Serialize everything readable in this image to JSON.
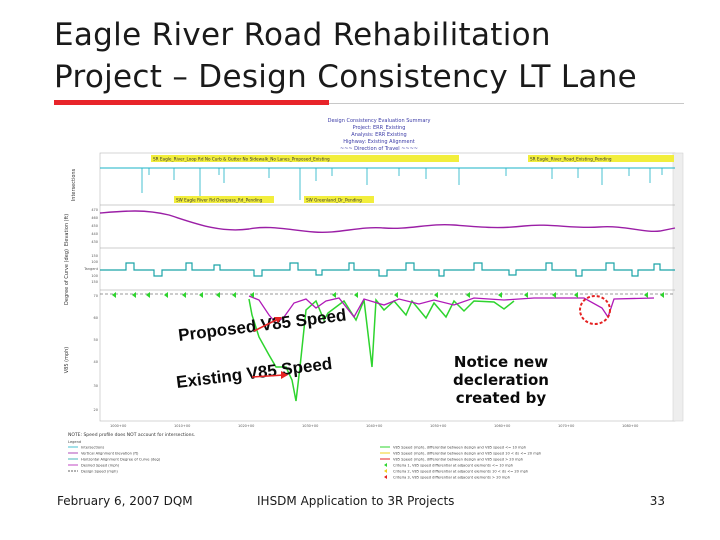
{
  "slide": {
    "title_line1": "Eagle River Road Rehabilitation",
    "title_line2": "Project – Design Consistency LT Lane",
    "accent_color": "#e8242a"
  },
  "report": {
    "header_lines": [
      "Design Consistency Evaluation Summary",
      "Project: ERR_Existing",
      "Analysis: ERR Existing",
      "Highway: Existing Alignment",
      "~~~ Direction of Travel ~~~~"
    ],
    "bands": {
      "intersections": "Intersections",
      "elevation": "Elevation (ft)",
      "curvature": "Degree of Curve (deg)",
      "speed": "V85 (mph)"
    },
    "tangent_label": "Tangent",
    "intersection_labels_top": [
      "SR Eagle_River_Loop Rd No Curb & Gutter No Sidewalk_No Lanes_Proposed_Existing",
      "SR Eagle_River_Road_Existing_Pending"
    ],
    "intersection_labels_bottom": [
      "SW Eagle River Rd Overpass_Rd_Pending",
      "SW Greenland_Dr_Pending"
    ],
    "annotations": {
      "proposed": "Proposed V85 Speed",
      "existing": "Existing V85 Speed",
      "notice": [
        "Notice new",
        "decleration",
        "created by"
      ]
    },
    "note": "NOTE: Speed profile does NOT account for intersections.",
    "legend_left_title": "Legend",
    "legend_left": [
      "Intersections",
      "Vertical Alignment Elevation (ft)",
      "Horizontal Alignment Degree of Curve (deg)",
      "Desired Speed (mph)",
      "Design Speed (mph)"
    ],
    "legend_right": [
      "V85 Speed (mph), differential between design and V85 speed <= 10 mph",
      "V85 Speed (mph), differential between design and V85 speed 10 < ds <= 20 mph",
      "V85 Speed (mph), differential between design and V85 speed > 20 mph",
      "Criteria 1, V85 speed differential at adjacent elements <= 10 mph",
      "Criteria 2, V85 speed differential at adjacent elements 10 < ds <= 20 mph",
      "Criteria 3, V85 speed differential at adjacent elements > 20 mph"
    ],
    "colors": {
      "intersection_line": "#19b3c7",
      "elevation_line": "#9b1fa6",
      "curvature_line": "#1aa3a8",
      "proposed_speed": "#b01ab8",
      "existing_speed": "#2ed42e",
      "callout": "#e52222",
      "label_bg": "#f2ee3c"
    }
  },
  "footer": {
    "date": "February 6, 2007 DQM",
    "center": "IHSDM Application to 3R Projects",
    "page": "33"
  }
}
